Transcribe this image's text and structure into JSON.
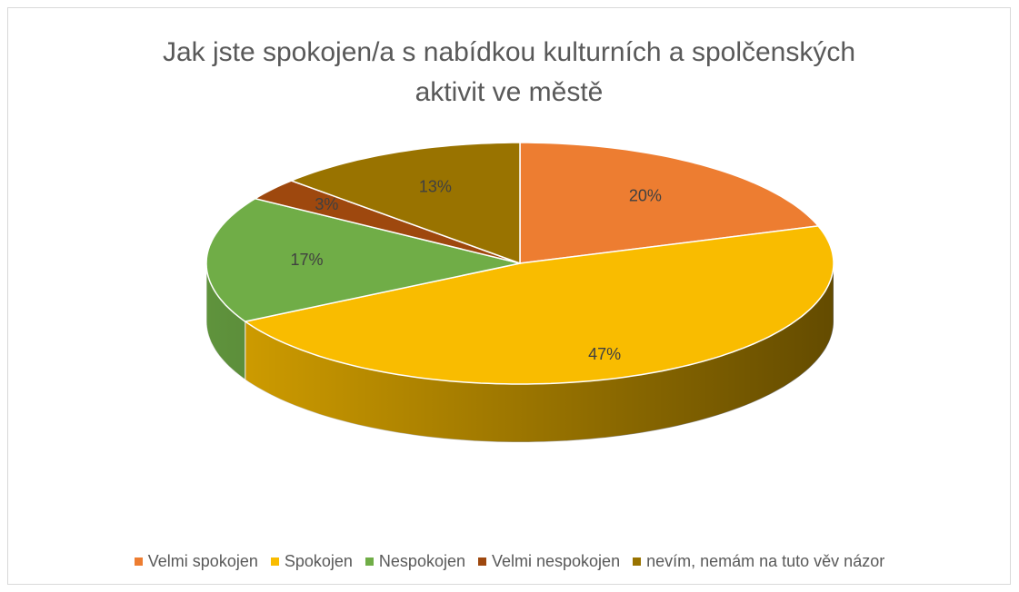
{
  "chart_data": {
    "type": "pie",
    "title": "Jak jste spokojen/a s nabídkou kulturních a spolčenských aktivit ve městě",
    "categories": [
      "Velmi spokojen",
      "Spokojen",
      "Nespokojen",
      "Velmi nespokojen",
      "nevím, nemám na tuto věv názor"
    ],
    "values": [
      20,
      47,
      17,
      3,
      13
    ],
    "value_labels": [
      "20%",
      "47%",
      "17%",
      "3%",
      "13%"
    ],
    "colors": [
      "#ED7D31",
      "#F9BC00",
      "#70AD47",
      "#9E480E",
      "#997300"
    ],
    "legend": "bottom"
  }
}
